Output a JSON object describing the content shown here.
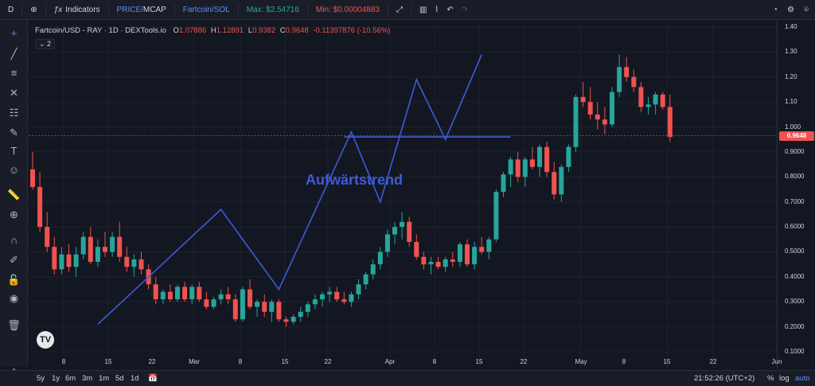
{
  "topbar": {
    "interval": "D",
    "indicators_label": "Indicators",
    "toggle_price": "PRICE/",
    "toggle_mcap": "MCAP",
    "pair_link": "Fartcoin/SOL",
    "max_label": "Max: $2.54716",
    "min_label": "Min: $0.00004883"
  },
  "legend": {
    "symbol": "Fartcoin/USD - RAY · 1D · DEXTools.io",
    "o_label": "O",
    "o_value": "1.07886",
    "h_label": "H",
    "h_value": "1.12891",
    "l_label": "L",
    "l_value": "0.9382",
    "c_label": "C",
    "c_value": "0.9648",
    "change": "-0.11397876 (-10.56%)",
    "collapse_count": "2"
  },
  "annotation": "Aufwärtstrend",
  "price_axis": {
    "ticks": [
      "1.40",
      "1.30",
      "1.20",
      "1.10",
      "1.000",
      "0.9000",
      "0.8000",
      "0.7000",
      "0.6000",
      "0.5000",
      "0.4000",
      "0.3000",
      "0.2000",
      "0.1000"
    ],
    "current_price": "0.9648"
  },
  "time_axis": {
    "ticks": [
      "8",
      "15",
      "22",
      "Mar",
      "8",
      "15",
      "22",
      "Apr",
      "8",
      "15",
      "22",
      "May",
      "8",
      "15",
      "22",
      "Jun"
    ]
  },
  "bottombar": {
    "ranges": [
      "5y",
      "1y",
      "6m",
      "3m",
      "1m",
      "5d",
      "1d"
    ],
    "clock": "21:52:26 (UTC+2)",
    "percent": "%",
    "log": "log",
    "auto": "auto"
  },
  "colors": {
    "up": "#26a69a",
    "down": "#ef5350",
    "trend": "#3d5bd9",
    "background": "#131722"
  },
  "chart_data": {
    "type": "candlestick",
    "title": "Fartcoin/USD - RAY · 1D · DEXTools.io",
    "ylim": [
      0.1,
      1.4
    ],
    "x_ticks": [
      "8",
      "15",
      "22",
      "Mar",
      "8",
      "15",
      "22",
      "Apr",
      "8",
      "15",
      "22",
      "May",
      "8",
      "15",
      "22",
      "Jun"
    ],
    "candles": [
      [
        0.83,
        0.9,
        0.75,
        0.76
      ],
      [
        0.76,
        0.82,
        0.58,
        0.6
      ],
      [
        0.6,
        0.66,
        0.5,
        0.52
      ],
      [
        0.52,
        0.56,
        0.41,
        0.43
      ],
      [
        0.43,
        0.52,
        0.41,
        0.49
      ],
      [
        0.49,
        0.53,
        0.42,
        0.44
      ],
      [
        0.44,
        0.52,
        0.4,
        0.49
      ],
      [
        0.49,
        0.58,
        0.47,
        0.56
      ],
      [
        0.56,
        0.6,
        0.45,
        0.46
      ],
      [
        0.46,
        0.55,
        0.44,
        0.52
      ],
      [
        0.52,
        0.58,
        0.48,
        0.5
      ],
      [
        0.5,
        0.58,
        0.48,
        0.56
      ],
      [
        0.56,
        0.62,
        0.46,
        0.48
      ],
      [
        0.48,
        0.52,
        0.42,
        0.44
      ],
      [
        0.44,
        0.49,
        0.4,
        0.47
      ],
      [
        0.47,
        0.5,
        0.41,
        0.43
      ],
      [
        0.43,
        0.45,
        0.35,
        0.37
      ],
      [
        0.37,
        0.4,
        0.29,
        0.31
      ],
      [
        0.31,
        0.35,
        0.29,
        0.34
      ],
      [
        0.34,
        0.37,
        0.3,
        0.31
      ],
      [
        0.31,
        0.37,
        0.3,
        0.36
      ],
      [
        0.36,
        0.38,
        0.3,
        0.31
      ],
      [
        0.31,
        0.37,
        0.29,
        0.36
      ],
      [
        0.36,
        0.38,
        0.3,
        0.31
      ],
      [
        0.31,
        0.34,
        0.27,
        0.28
      ],
      [
        0.28,
        0.32,
        0.27,
        0.31
      ],
      [
        0.31,
        0.35,
        0.29,
        0.33
      ],
      [
        0.33,
        0.36,
        0.29,
        0.31
      ],
      [
        0.31,
        0.33,
        0.22,
        0.23
      ],
      [
        0.23,
        0.36,
        0.22,
        0.35
      ],
      [
        0.35,
        0.39,
        0.27,
        0.28
      ],
      [
        0.28,
        0.31,
        0.24,
        0.3
      ],
      [
        0.3,
        0.33,
        0.24,
        0.26
      ],
      [
        0.26,
        0.31,
        0.22,
        0.3
      ],
      [
        0.3,
        0.31,
        0.22,
        0.23
      ],
      [
        0.23,
        0.24,
        0.2,
        0.22
      ],
      [
        0.22,
        0.25,
        0.21,
        0.24
      ],
      [
        0.24,
        0.28,
        0.22,
        0.26
      ],
      [
        0.26,
        0.3,
        0.24,
        0.29
      ],
      [
        0.29,
        0.33,
        0.27,
        0.31
      ],
      [
        0.31,
        0.34,
        0.28,
        0.33
      ],
      [
        0.33,
        0.36,
        0.3,
        0.34
      ],
      [
        0.34,
        0.36,
        0.3,
        0.31
      ],
      [
        0.31,
        0.34,
        0.29,
        0.3
      ],
      [
        0.3,
        0.34,
        0.28,
        0.33
      ],
      [
        0.33,
        0.39,
        0.31,
        0.37
      ],
      [
        0.37,
        0.42,
        0.35,
        0.41
      ],
      [
        0.41,
        0.47,
        0.39,
        0.45
      ],
      [
        0.45,
        0.52,
        0.43,
        0.5
      ],
      [
        0.5,
        0.59,
        0.48,
        0.57
      ],
      [
        0.57,
        0.62,
        0.53,
        0.6
      ],
      [
        0.6,
        0.66,
        0.55,
        0.62
      ],
      [
        0.62,
        0.64,
        0.52,
        0.54
      ],
      [
        0.54,
        0.57,
        0.47,
        0.48
      ],
      [
        0.48,
        0.5,
        0.43,
        0.45
      ],
      [
        0.45,
        0.48,
        0.41,
        0.46
      ],
      [
        0.46,
        0.48,
        0.43,
        0.44
      ],
      [
        0.44,
        0.48,
        0.42,
        0.47
      ],
      [
        0.47,
        0.5,
        0.44,
        0.46
      ],
      [
        0.46,
        0.54,
        0.44,
        0.53
      ],
      [
        0.53,
        0.55,
        0.44,
        0.45
      ],
      [
        0.45,
        0.54,
        0.43,
        0.52
      ],
      [
        0.52,
        0.56,
        0.49,
        0.5
      ],
      [
        0.5,
        0.56,
        0.47,
        0.55
      ],
      [
        0.55,
        0.75,
        0.54,
        0.74
      ],
      [
        0.74,
        0.82,
        0.72,
        0.81
      ],
      [
        0.81,
        0.88,
        0.76,
        0.87
      ],
      [
        0.87,
        0.9,
        0.78,
        0.8
      ],
      [
        0.8,
        0.88,
        0.76,
        0.87
      ],
      [
        0.87,
        0.92,
        0.83,
        0.84
      ],
      [
        0.84,
        0.93,
        0.8,
        0.92
      ],
      [
        0.92,
        0.94,
        0.8,
        0.82
      ],
      [
        0.82,
        0.86,
        0.71,
        0.73
      ],
      [
        0.73,
        0.85,
        0.7,
        0.84
      ],
      [
        0.84,
        0.93,
        0.82,
        0.92
      ],
      [
        0.92,
        1.13,
        0.9,
        1.12
      ],
      [
        1.12,
        1.18,
        1.08,
        1.1
      ],
      [
        1.1,
        1.16,
        1.03,
        1.05
      ],
      [
        1.05,
        1.1,
        0.99,
        1.03
      ],
      [
        1.03,
        1.08,
        0.97,
        1.01
      ],
      [
        1.01,
        1.16,
        1.0,
        1.14
      ],
      [
        1.14,
        1.29,
        1.12,
        1.24
      ],
      [
        1.24,
        1.28,
        1.18,
        1.2
      ],
      [
        1.2,
        1.23,
        1.14,
        1.16
      ],
      [
        1.16,
        1.18,
        1.06,
        1.08
      ],
      [
        1.08,
        1.12,
        1.05,
        1.09
      ],
      [
        1.09,
        1.14,
        1.05,
        1.13
      ],
      [
        1.13,
        1.14,
        1.07,
        1.08
      ],
      [
        1.08,
        1.13,
        0.94,
        0.96
      ]
    ],
    "trendlines": [
      [
        [
          9,
          0.21
        ],
        [
          26,
          0.67
        ],
        [
          34,
          0.35
        ],
        [
          44,
          0.98
        ],
        [
          48,
          0.7
        ],
        [
          53,
          1.19
        ],
        [
          57,
          0.95
        ],
        [
          62,
          1.29
        ]
      ],
      [
        [
          43,
          0.96
        ],
        [
          66,
          0.96
        ]
      ]
    ]
  }
}
